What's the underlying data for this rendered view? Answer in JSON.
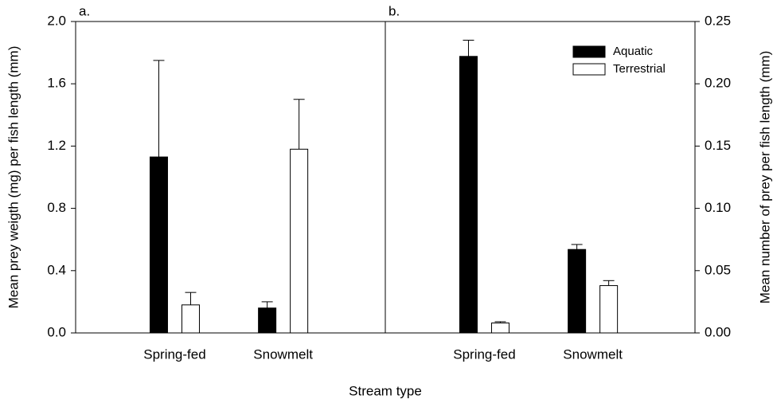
{
  "chart_data": [
    {
      "type": "bar",
      "panel_label": "a.",
      "ylabel": "Mean prey weigth (mg) per fish length (mm)",
      "xlabel": "Stream type",
      "categories": [
        "Spring-fed",
        "Snowmelt"
      ],
      "series": [
        {
          "name": "Aquatic",
          "color": "#000000",
          "values": [
            1.13,
            0.16
          ],
          "errors": [
            0.62,
            0.04
          ]
        },
        {
          "name": "Terrestrial",
          "color": "#ffffff",
          "values": [
            0.18,
            1.18
          ],
          "errors": [
            0.08,
            0.32
          ]
        }
      ],
      "ylim": [
        0,
        2.0
      ],
      "yticks": [
        {
          "value": 0,
          "label": "0.0"
        },
        0.4,
        0.8,
        1.2,
        1.6,
        {
          "value": 2,
          "label": "2.0"
        }
      ],
      "legend": false,
      "axis_side": "left"
    },
    {
      "type": "bar",
      "panel_label": "b.",
      "ylabel": "Mean number of prey per fish length (mm)",
      "categories": [
        "Spring-fed",
        "Snowmelt"
      ],
      "series": [
        {
          "name": "Aquatic",
          "color": "#000000",
          "values": [
            0.222,
            0.067
          ],
          "errors": [
            0.013,
            0.004
          ]
        },
        {
          "name": "Terrestrial",
          "color": "#ffffff",
          "values": [
            0.008,
            0.038
          ],
          "errors": [
            0.001,
            0.004
          ]
        }
      ],
      "ylim": [
        0,
        0.25
      ],
      "yticks": [
        {
          "value": 0,
          "label": "0.00"
        },
        0.05,
        {
          "value": 0.1,
          "label": "0.10"
        },
        0.15,
        {
          "value": 0.2,
          "label": "0.20"
        },
        0.25
      ],
      "legend": true,
      "legend_position": "upper right",
      "axis_side": "right"
    }
  ]
}
